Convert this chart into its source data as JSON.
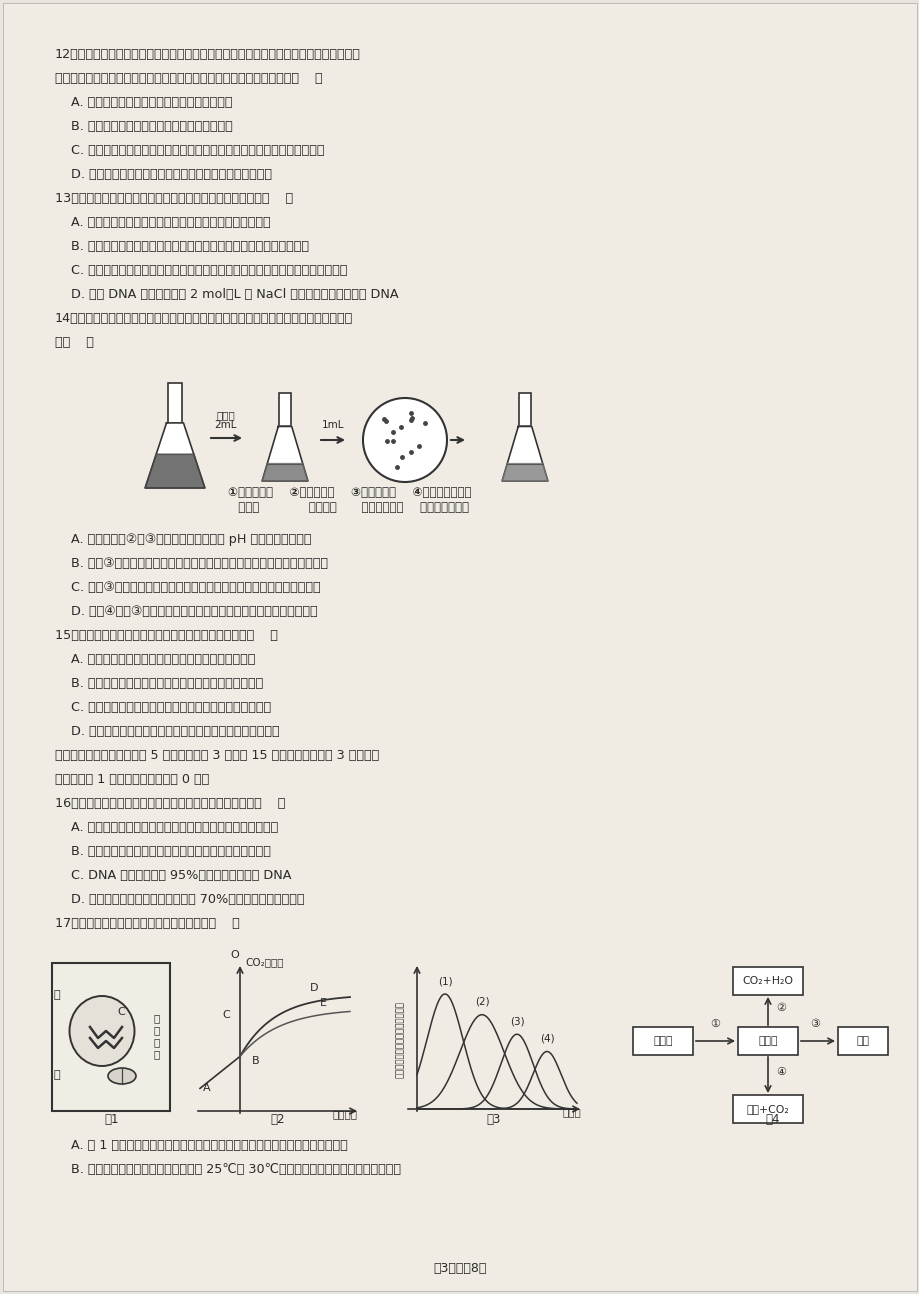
{
  "background_color": "#e8e4de",
  "paper_color": "#f0ece4",
  "text_color": "#2a2a2a",
  "footer": "第3页，兲8页",
  "lines": [
    "12、某小组同学为了调查湖水中细菌的污染情况而进行了实验，包括制备培养基、灯菌、",
    "接种培养、菌落观察与计数。下列与此实验相关问题的叙述中正确的是（    ）",
    "    A. 实验用过的带菌培养基经过加热后才能倒掉",
    "    B. 利用平板划线法对细菌进行分离纯化并计数",
    "    C. 观察细菌培养的实验时，最好是在另一块平板上接种清水作为对照实验",
    "    D. 培养基中含有的蛋白胨可以为细菌培养提供碳源和氮源",
    "13、下列高中生物学实验或实践活动中，无法达到目的的是（    ）",
    "    A. 新鲜的葡萄汁中接种一定量的干酵母菌，发酵制作果酒",
    "    B. 消毒后的转基因植物叶片接种到无菌培养基上，培养获得愈伤组织",
    "    C. 在蔗糖溶液中加入适量红墨水，可用于观察洋葱鳞片叶内表皮细胞的质壁分离",
    "    D. 在含 DNA 的滤液中加入 2 mol／L 的 NaCl 溶液，去除杂质并析出 DNA",
    "14、如图是研究人员从红棕壤中筛选高效分解尿素细菌的过程示意图，有关叙述错误的",
    "是（    ）"
  ],
  "diagram_caption_items": [
    "①制备红棕壤    ②在选择培养    ③筛选、纯化    ④细菌分解尿素能",
    "  洸出液            基中培养      分解尿素细菌    力的鉴定和比较"
  ],
  "lines2": [
    "    A. 在配制步骤②、③的培养基时，应先调 pH 值后高压蔓汽灯菌",
    "    B. 步骤③纯化分解尿素的原理是将聚集的细菌分散，可以获得单细胞菌落",
    "    C. 步骤③采用涂布平板法接种，可用于将牛肉蛋白胨培养基中加入尿素",
    "    D. 步骤④挑取③中不同种的菌落分别接种，比较细菌分解尿素的能力",
    "15、下列有关「菊花的组织培养」实验说法不正确的是（    ）",
    "    A. 培养基中添加蔗糖的目的是提供营养和调节渗透压",
    "    B. 培养基中可以不添加生长素和细胞分裂素等植物激素",
    "    C. 外植体的消毒既要考虑效果，又要考虑植物的耐受能力",
    "    D. 培育出的试管苗可以进行光合作用，应直接移栽到大田中",
    "二、多项选择题（本题包括 5 小题，每小题 3 分，共 15 分。全部选对的得 3 分，选对",
    "但不全的得 1 分，错选或不答的得 0 分）",
    "16、酒精是生物实验常用的试剂之一，相关叙述正确的是（    ）",
    "    A. 脂肪鉴定实验中，使用酒精的目的是溶解花生子叶细胞膜",
    "    B. 提取光合色素过程中，加入无水乙醇的作用是溶解色素",
    "    C. DNA 提取时，加入 95%的酒精有利于析出 DNA",
    "    D. 微生物实验室培养过程中，常用 70%的酒精对双手进行消毒",
    "17、仔细分析下列四图，有关说法错误的是（    ）"
  ],
  "lines3": [
    "    A. 图 1 中的两种细胞器，在光照充足时，乙同化作用所需的原料都来自细胞外",
    "    B. 植物光合和呼吸的最适温度分别为 25℃和 30℃，在其他条件充足且适宜的情况下，"
  ]
}
